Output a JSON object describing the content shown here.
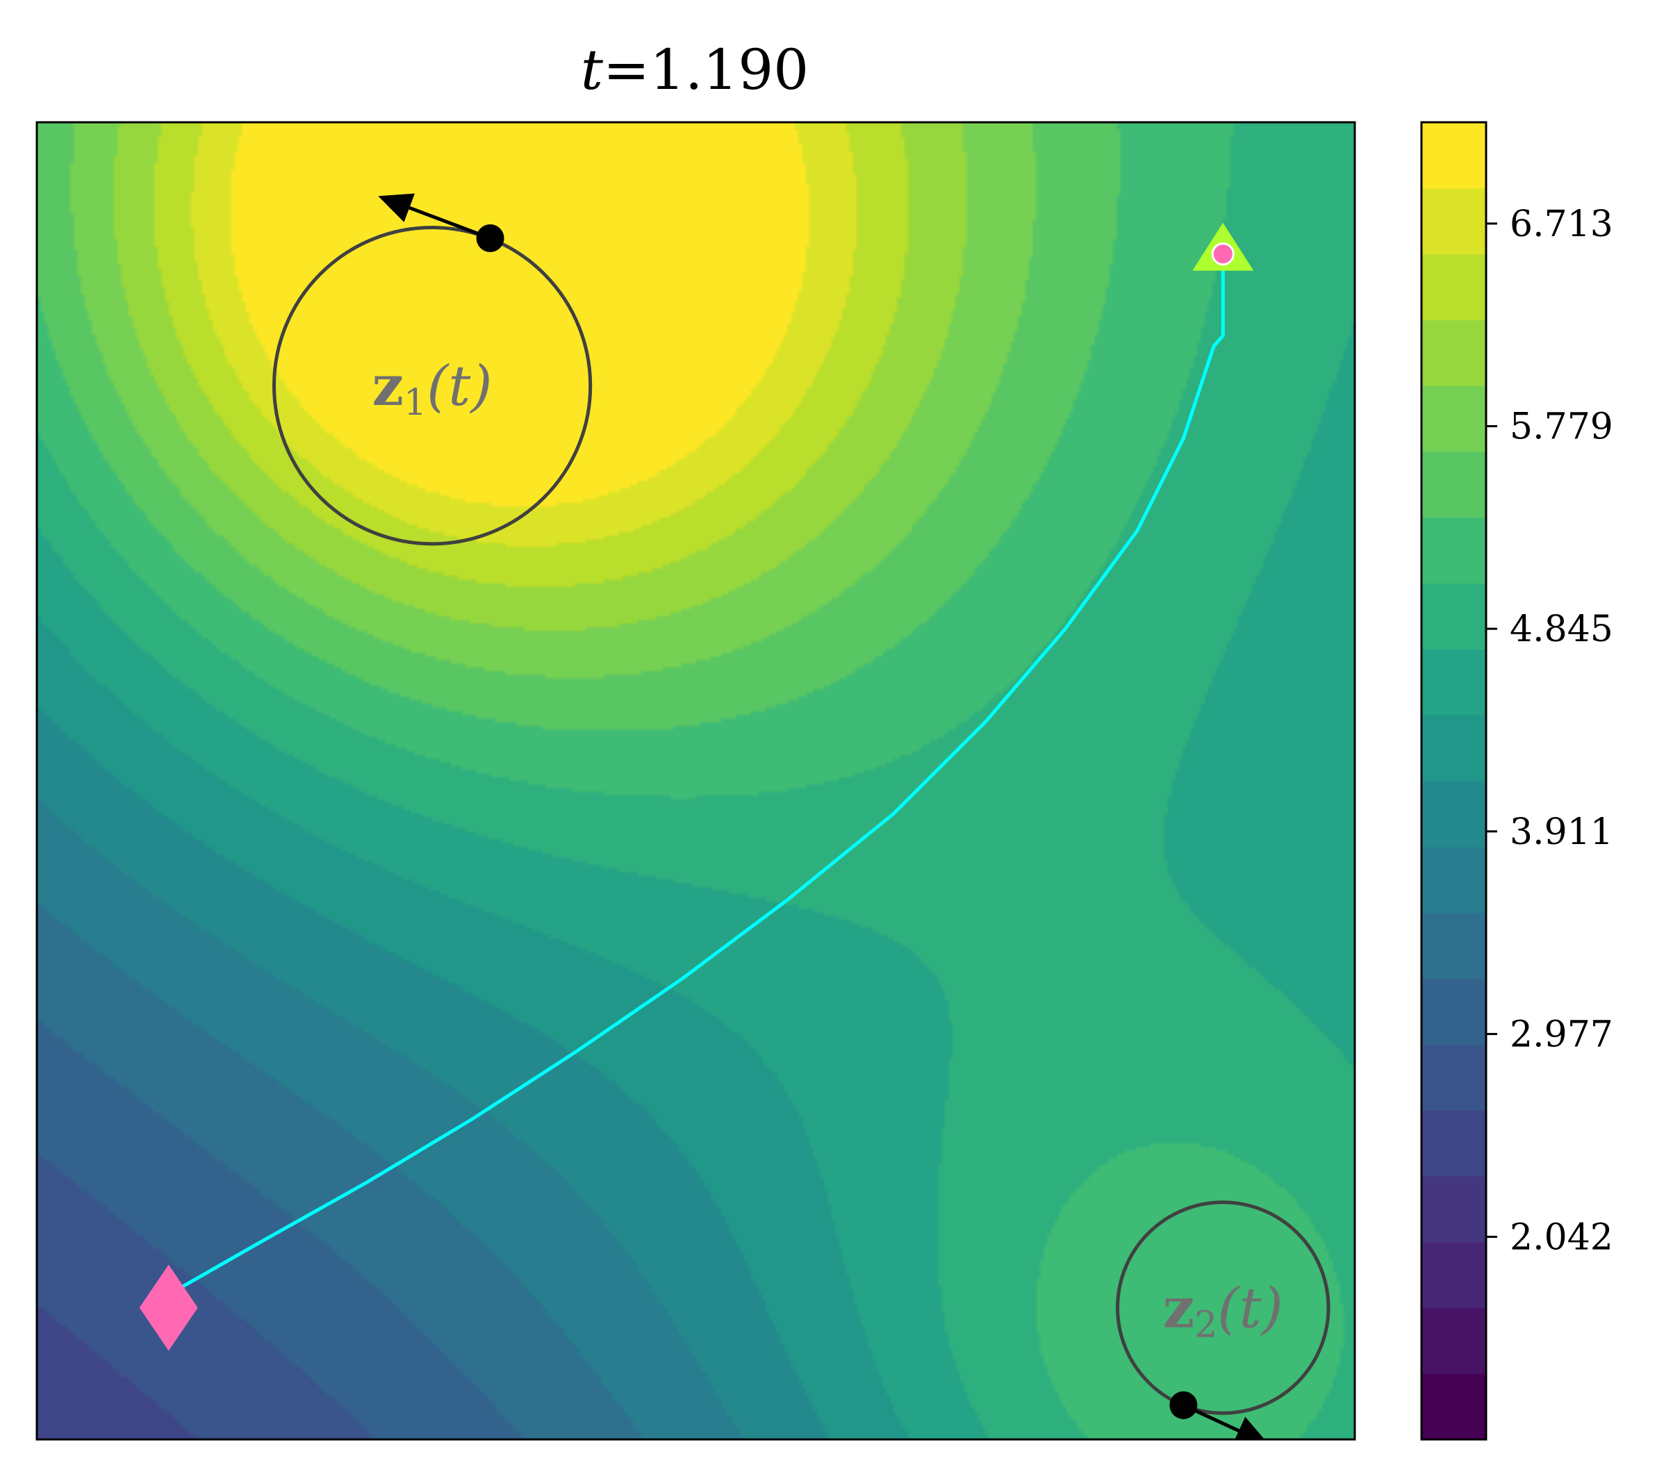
{
  "chart_data": {
    "type": "heatmap",
    "subtype": "filled-contour",
    "title": "t=1.190",
    "title_parts": {
      "var": "t",
      "eq": "=",
      "value": "1.190"
    },
    "colormap": "viridis",
    "colorbar": {
      "range": [
        1.108,
        7.18
      ],
      "ticks": [
        2.042,
        2.977,
        3.911,
        4.845,
        5.779,
        6.713
      ],
      "tick_labels": [
        "2.042",
        "2.977",
        "3.911",
        "4.845",
        "5.779",
        "6.713"
      ],
      "levels": 20
    },
    "axes": {
      "xlim": [
        0,
        1
      ],
      "ylim": [
        0,
        1
      ],
      "ticks_visible": false
    },
    "sources": [
      {
        "name": "z1",
        "label_main": "z",
        "label_sub": "1",
        "label_arg": "(t)",
        "center": [
          0.3,
          0.8
        ],
        "radius": 0.12,
        "position": [
          0.344,
          0.912
        ],
        "velocity": [
          -0.085,
          0.032
        ],
        "amplitude": 5.3
      },
      {
        "name": "z2",
        "label_main": "z",
        "label_sub": "2",
        "label_arg": "(t)",
        "center": [
          0.9,
          0.1
        ],
        "radius": 0.08,
        "position": [
          0.87,
          0.026
        ],
        "velocity": [
          0.065,
          -0.03
        ],
        "amplitude": 2.6
      }
    ],
    "path": {
      "color": "#00ffff",
      "points": [
        [
          0.1,
          0.11
        ],
        [
          0.17,
          0.15
        ],
        [
          0.25,
          0.195
        ],
        [
          0.33,
          0.243
        ],
        [
          0.41,
          0.295
        ],
        [
          0.49,
          0.35
        ],
        [
          0.57,
          0.41
        ],
        [
          0.65,
          0.475
        ],
        [
          0.72,
          0.545
        ],
        [
          0.78,
          0.615
        ],
        [
          0.835,
          0.69
        ],
        [
          0.87,
          0.76
        ],
        [
          0.893,
          0.83
        ],
        [
          0.9,
          0.838
        ],
        [
          0.9,
          0.89
        ]
      ],
      "start_marker": {
        "shape": "diamond",
        "color": "#ff69b4",
        "position": [
          0.1,
          0.1
        ]
      },
      "goal_marker": {
        "shape": "triangle",
        "color": "#adff2f",
        "position": [
          0.9,
          0.9
        ]
      },
      "end_marker": {
        "shape": "circle",
        "color": "#ff69b4",
        "position": [
          0.9,
          0.9
        ]
      }
    },
    "background_field": {
      "base": 1.4,
      "slope_x": 0.75,
      "slope_y": 1.2
    }
  }
}
